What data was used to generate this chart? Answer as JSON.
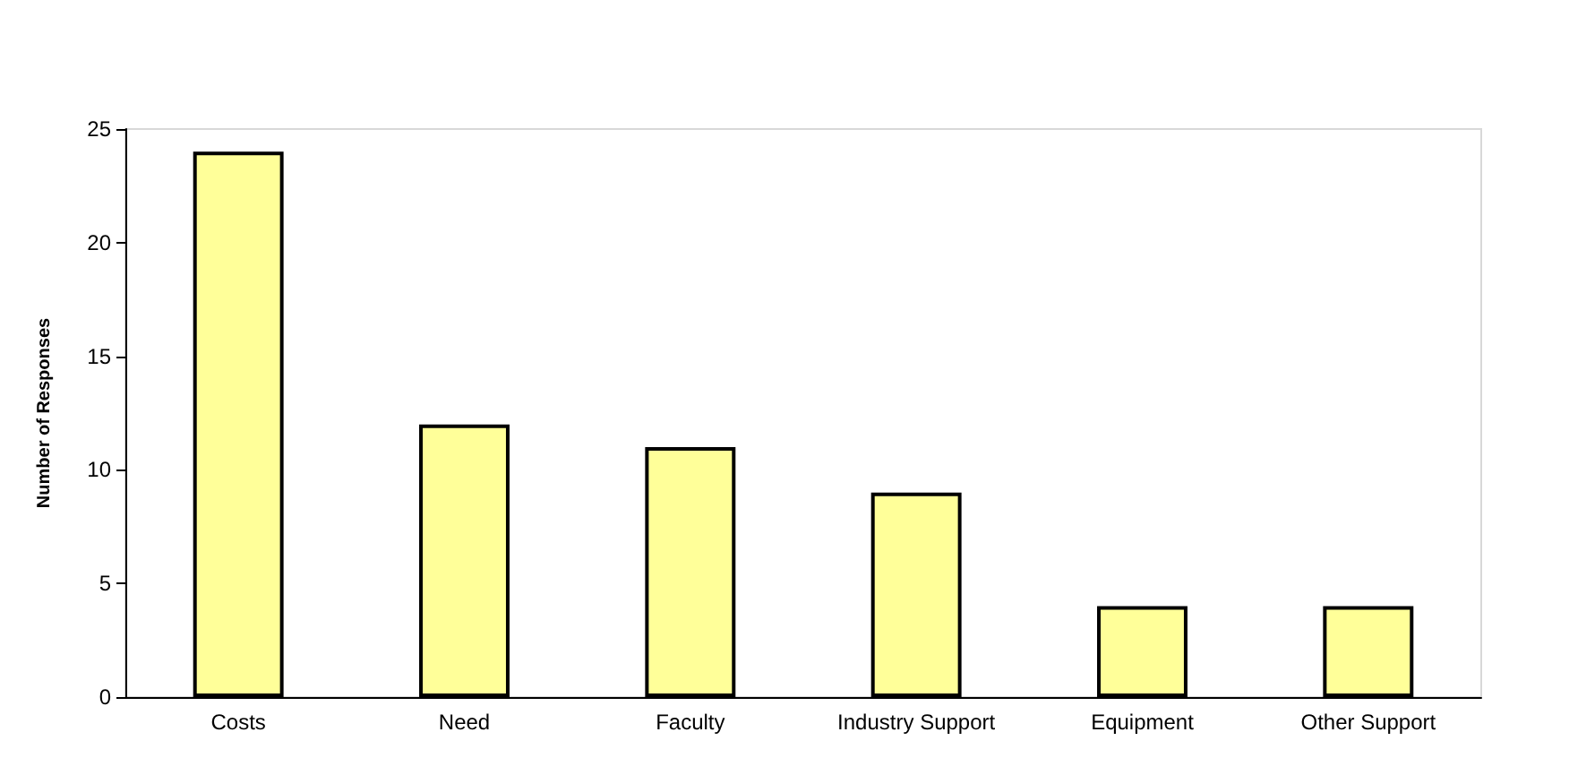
{
  "chart_data": {
    "type": "bar",
    "ylabel": "Number of Responses",
    "categories": [
      "Costs",
      "Need",
      "Faculty",
      "Industry Support",
      "Equipment",
      "Other Support"
    ],
    "values": [
      24,
      12,
      11,
      9,
      4,
      4
    ],
    "color": "#ffff99",
    "ylim": [
      0,
      25
    ],
    "yticks": [
      0,
      5,
      10,
      15,
      20,
      25
    ],
    "grid": false
  }
}
